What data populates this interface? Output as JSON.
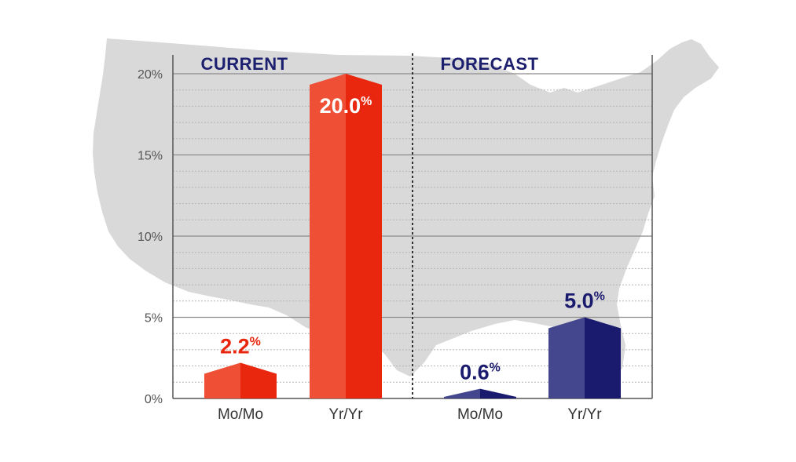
{
  "chart_data": {
    "type": "bar",
    "ylim": [
      0,
      20
    ],
    "yticks": [
      0,
      5,
      10,
      15,
      20
    ],
    "ytick_labels": [
      "0%",
      "5%",
      "10%",
      "15%",
      "20%"
    ],
    "grid": true,
    "groups": [
      {
        "title": "CURRENT",
        "color": "#e8270e",
        "color_light": "#ee4f35",
        "bars": [
          {
            "category": "Mo/Mo",
            "value": 2.2,
            "label": "2.2",
            "suffix": "%"
          },
          {
            "category": "Yr/Yr",
            "value": 20.0,
            "label": "20.0",
            "suffix": "%"
          }
        ]
      },
      {
        "title": "FORECAST",
        "color": "#1a1a6e",
        "color_light": "#45478e",
        "bars": [
          {
            "category": "Mo/Mo",
            "value": 0.6,
            "label": "0.6",
            "suffix": "%"
          },
          {
            "category": "Yr/Yr",
            "value": 5.0,
            "label": "5.0",
            "suffix": "%"
          }
        ]
      }
    ]
  }
}
